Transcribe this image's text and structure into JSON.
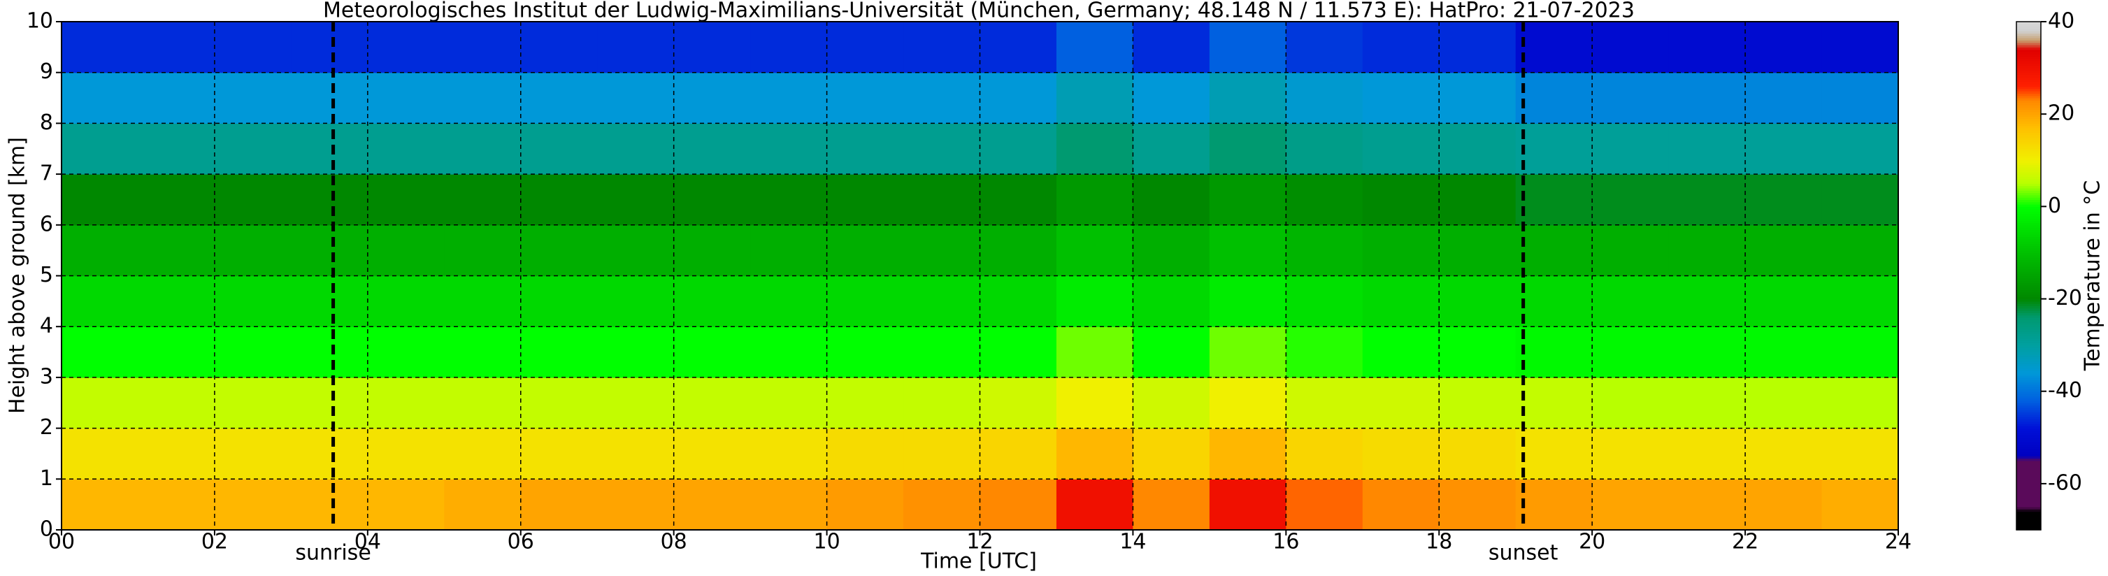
{
  "chart_data": {
    "type": "heatmap",
    "title": "Meteorologisches Institut der Ludwig-Maximilians-Universität (München, Germany; 48.148 N / 11.573 E):    HatPro: 21-07-2023",
    "x_label": "Time [UTC]",
    "y_label": "Height above ground [km]",
    "colorbar_label": "Temperature in °C",
    "x": [
      0.5,
      1.5,
      2.5,
      3.5,
      4.5,
      5.5,
      6.5,
      7.5,
      8.5,
      9.5,
      10.5,
      11.5,
      12.5,
      13.5,
      14.5,
      15.5,
      16.5,
      17.5,
      18.5,
      19.5,
      20.5,
      21.5,
      22.5,
      23.5
    ],
    "y": [
      0.5,
      1.5,
      2.5,
      3.5,
      4.5,
      5.5,
      6.5,
      7.5,
      8.5,
      9.5
    ],
    "z": [
      [
        18,
        18,
        18,
        18,
        18,
        19,
        20,
        20,
        20,
        20,
        21,
        22,
        23,
        30,
        23,
        30,
        24,
        23,
        22,
        21,
        20,
        20,
        20,
        19
      ],
      [
        12,
        12,
        12,
        12,
        12,
        12,
        12,
        12,
        12,
        12,
        13,
        13,
        14,
        18,
        14,
        18,
        14,
        13,
        13,
        12,
        12,
        12,
        12,
        12
      ],
      [
        6,
        6,
        6,
        6,
        6,
        6,
        6,
        6,
        6,
        6,
        6,
        6,
        7,
        10,
        7,
        10,
        7,
        7,
        6,
        6,
        5,
        5,
        5,
        5
      ],
      [
        0,
        0,
        0,
        0,
        0,
        0,
        0,
        0,
        0,
        0,
        0,
        0,
        0,
        3,
        0,
        3,
        1,
        0,
        0,
        -1,
        -1,
        -1,
        -1,
        -1
      ],
      [
        -6,
        -6,
        -6,
        -6,
        -6,
        -6,
        -6,
        -6,
        -6,
        -6,
        -6,
        -6,
        -6,
        -3,
        -6,
        -3,
        -5,
        -6,
        -6,
        -6,
        -6,
        -6,
        -6,
        -6
      ],
      [
        -13,
        -13,
        -13,
        -13,
        -13,
        -13,
        -13,
        -13,
        -13,
        -13,
        -13,
        -13,
        -13,
        -10,
        -13,
        -10,
        -12,
        -13,
        -13,
        -13,
        -13,
        -13,
        -13,
        -13
      ],
      [
        -20,
        -20,
        -20,
        -20,
        -20,
        -20,
        -20,
        -20,
        -20,
        -20,
        -20,
        -20,
        -20,
        -17,
        -20,
        -17,
        -19,
        -20,
        -20,
        -21,
        -21,
        -21,
        -21,
        -21
      ],
      [
        -28,
        -28,
        -28,
        -28,
        -28,
        -28,
        -28,
        -28,
        -28,
        -28,
        -28,
        -28,
        -28,
        -24,
        -28,
        -24,
        -27,
        -28,
        -28,
        -29,
        -29,
        -29,
        -29,
        -29
      ],
      [
        -36,
        -36,
        -36,
        -36,
        -36,
        -36,
        -36,
        -36,
        -36,
        -36,
        -36,
        -36,
        -36,
        -32,
        -36,
        -32,
        -35,
        -36,
        -36,
        -38,
        -38,
        -38,
        -38,
        -38
      ],
      [
        -46,
        -46,
        -46,
        -46,
        -46,
        -46,
        -46,
        -46,
        -46,
        -46,
        -46,
        -46,
        -46,
        -42,
        -46,
        -42,
        -45,
        -46,
        -46,
        -50,
        -50,
        -50,
        -50,
        -50
      ]
    ],
    "xlim": [
      0,
      24
    ],
    "ylim": [
      0,
      10
    ],
    "xticks": [
      {
        "value": 0,
        "label": "00"
      },
      {
        "value": 2,
        "label": "02"
      },
      {
        "value": 4,
        "label": "04"
      },
      {
        "value": 6,
        "label": "06"
      },
      {
        "value": 8,
        "label": "08"
      },
      {
        "value": 10,
        "label": "10"
      },
      {
        "value": 12,
        "label": "12"
      },
      {
        "value": 14,
        "label": "14"
      },
      {
        "value": 16,
        "label": "16"
      },
      {
        "value": 18,
        "label": "18"
      },
      {
        "value": 20,
        "label": "20"
      },
      {
        "value": 22,
        "label": "22"
      },
      {
        "value": 24,
        "label": "24"
      }
    ],
    "yticks": [
      0,
      1,
      2,
      3,
      4,
      5,
      6,
      7,
      8,
      9,
      10
    ],
    "grid": true,
    "clim": [
      -70,
      40
    ],
    "cticks": [
      -60,
      -40,
      -20,
      0,
      20,
      40
    ],
    "colorscale": [
      [
        -70,
        "#000000"
      ],
      [
        -66,
        "#000000"
      ],
      [
        -65,
        "#5a0a5a"
      ],
      [
        -55,
        "#5a0a5a"
      ],
      [
        -54,
        "#0000c0"
      ],
      [
        -48,
        "#0010d8"
      ],
      [
        -42,
        "#0060e0"
      ],
      [
        -36,
        "#0098d8"
      ],
      [
        -30,
        "#00a0a0"
      ],
      [
        -24,
        "#009a70"
      ],
      [
        -20,
        "#008800"
      ],
      [
        -10,
        "#00c000"
      ],
      [
        0,
        "#00ff00"
      ],
      [
        5,
        "#b8ff00"
      ],
      [
        10,
        "#f0f000"
      ],
      [
        17,
        "#ffc000"
      ],
      [
        23,
        "#ff8800"
      ],
      [
        26,
        "#ff2000"
      ],
      [
        34,
        "#e00000"
      ],
      [
        36,
        "#c8a070"
      ],
      [
        38,
        "#d0d0d0"
      ],
      [
        40,
        "#d8d8d8"
      ]
    ],
    "annotations": [
      {
        "x": 3.55,
        "text": "sunrise"
      },
      {
        "x": 19.1,
        "text": "sunset"
      }
    ]
  }
}
